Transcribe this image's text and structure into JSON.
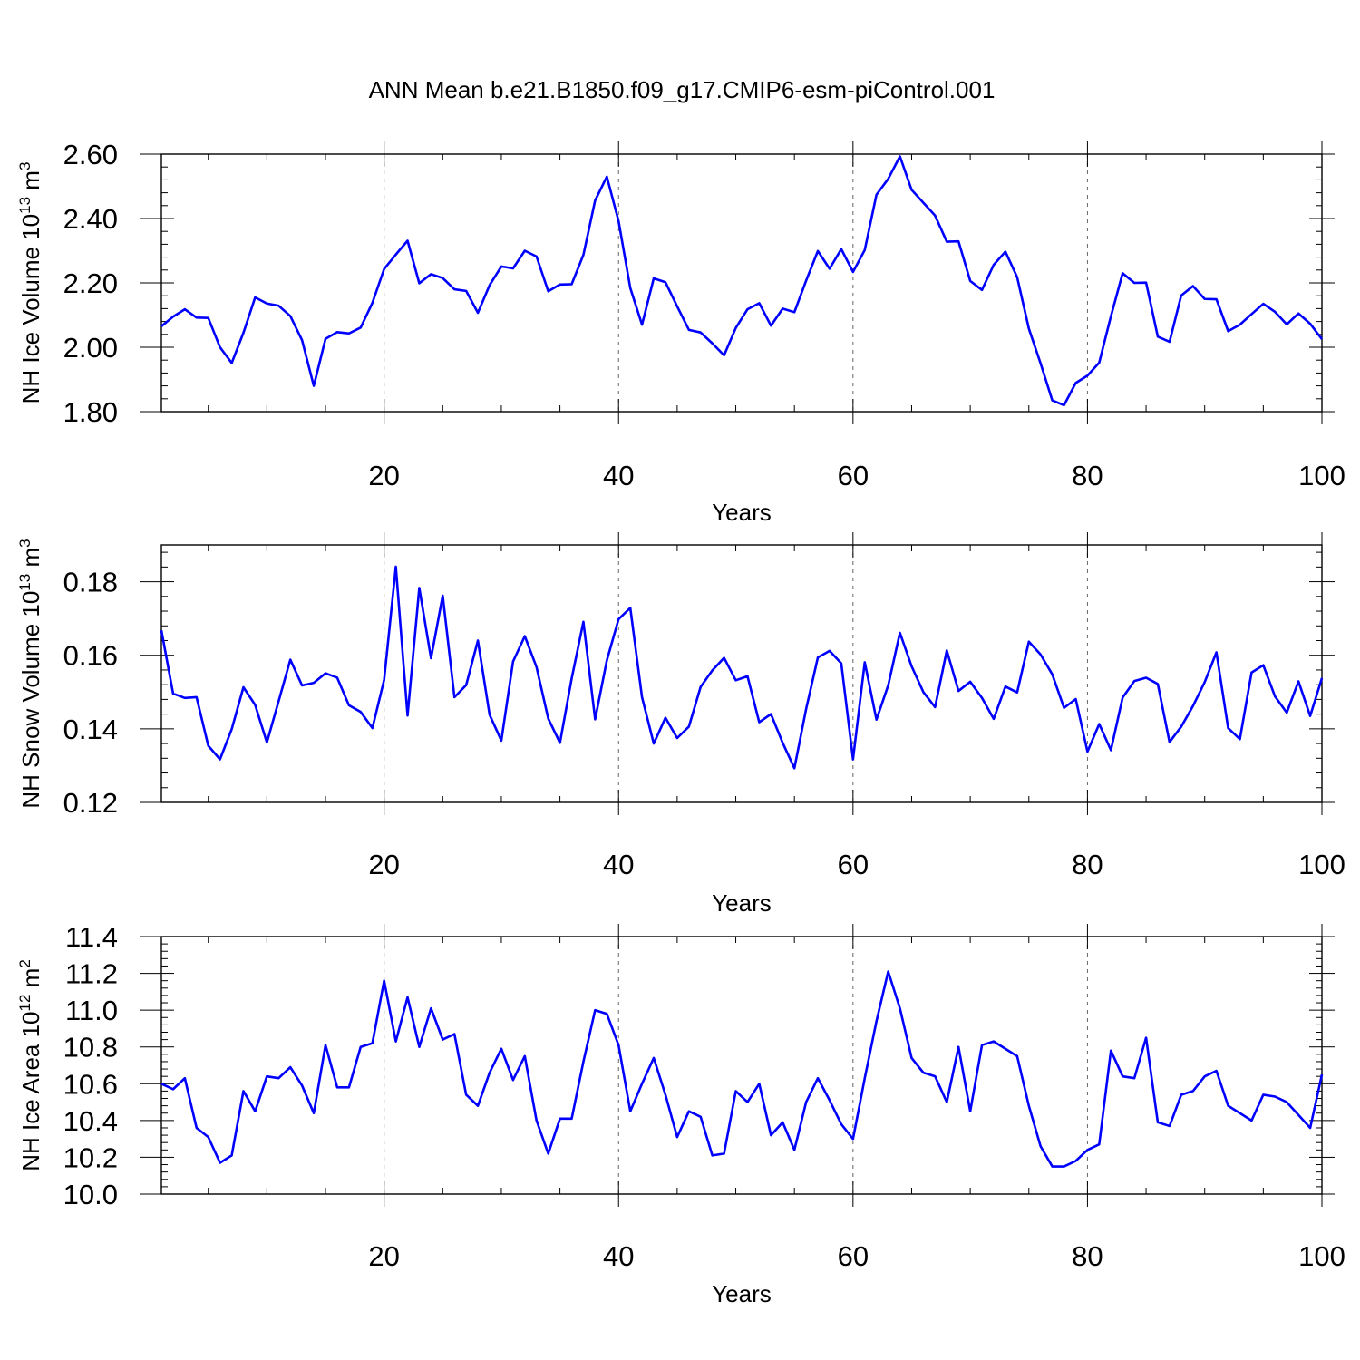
{
  "title": "ANN Mean b.e21.B1850.f09_g17.CMIP6-esm-piControl.001",
  "line_color": "#0000ff",
  "chart_data": [
    {
      "type": "line",
      "ylabel": "NH Ice Volume 10",
      "ylabel_exp": "13",
      "ylabel_unit": " m",
      "ylabel_unit_exp": "3",
      "xlabel": "Years",
      "xlim": [
        1,
        100
      ],
      "ylim": [
        1.8,
        2.6
      ],
      "yticks": [
        1.8,
        2.0,
        2.2,
        2.4,
        2.6
      ],
      "ytick_labels": [
        "1.80",
        "2.00",
        "2.20",
        "2.40",
        "2.60"
      ],
      "xticks": [
        20,
        40,
        60,
        80,
        100
      ],
      "xtick_labels": [
        "20",
        "40",
        "60",
        "80",
        "100"
      ],
      "grid_x": [
        20,
        40,
        60,
        80
      ],
      "series": [
        {
          "values": [
            2.065,
            2.095,
            2.118,
            2.092,
            2.091,
            2.0,
            1.951,
            2.045,
            2.155,
            2.136,
            2.129,
            2.097,
            2.022,
            1.88,
            2.026,
            2.047,
            2.043,
            2.061,
            2.138,
            2.243,
            2.288,
            2.331,
            2.199,
            2.227,
            2.215,
            2.18,
            2.175,
            2.107,
            2.193,
            2.251,
            2.245,
            2.3,
            2.282,
            2.174,
            2.195,
            2.196,
            2.287,
            2.456,
            2.53,
            2.392,
            2.184,
            2.07,
            2.214,
            2.202,
            2.127,
            2.054,
            2.046,
            2.012,
            1.975,
            2.06,
            2.118,
            2.137,
            2.067,
            2.12,
            2.109,
            2.207,
            2.299,
            2.244,
            2.305,
            2.234,
            2.302,
            2.474,
            2.523,
            2.593,
            2.489,
            2.449,
            2.409,
            2.328,
            2.329,
            2.206,
            2.178,
            2.256,
            2.297,
            2.218,
            2.058,
            1.95,
            1.835,
            1.82,
            1.889,
            1.912,
            1.952,
            2.096,
            2.23,
            2.2,
            2.201,
            2.033,
            2.017,
            2.161,
            2.19,
            2.15,
            2.149,
            2.05,
            2.07,
            2.103,
            2.135,
            2.11,
            2.071,
            2.105,
            2.073,
            2.025
          ]
        }
      ]
    },
    {
      "type": "line",
      "ylabel": "NH Snow Volume 10",
      "ylabel_exp": "13",
      "ylabel_unit": " m",
      "ylabel_unit_exp": "3",
      "xlabel": "Years",
      "xlim": [
        1,
        100
      ],
      "ylim": [
        0.12,
        0.19
      ],
      "yticks": [
        0.12,
        0.14,
        0.16,
        0.18
      ],
      "ytick_labels": [
        "0.12",
        "0.14",
        "0.16",
        "0.18"
      ],
      "xticks": [
        20,
        40,
        60,
        80,
        100
      ],
      "xtick_labels": [
        "20",
        "40",
        "60",
        "80",
        "100"
      ],
      "grid_x": [
        20,
        40,
        60,
        80
      ],
      "series": [
        {
          "values": [
            0.1668,
            0.1496,
            0.1484,
            0.1486,
            0.1354,
            0.1317,
            0.1399,
            0.1513,
            0.1465,
            0.1363,
            0.1475,
            0.1588,
            0.1518,
            0.1525,
            0.1551,
            0.1539,
            0.1464,
            0.1446,
            0.1402,
            0.1533,
            0.1841,
            0.1436,
            0.1783,
            0.1592,
            0.1762,
            0.1486,
            0.1519,
            0.164,
            0.1438,
            0.1368,
            0.1583,
            0.1652,
            0.1568,
            0.1428,
            0.1362,
            0.1537,
            0.1691,
            0.1426,
            0.1586,
            0.1698,
            0.1729,
            0.1486,
            0.136,
            0.143,
            0.1375,
            0.1406,
            0.1514,
            0.1559,
            0.1593,
            0.1532,
            0.1543,
            0.1418,
            0.144,
            0.1362,
            0.1293,
            0.1454,
            0.1594,
            0.1612,
            0.1578,
            0.1317,
            0.1581,
            0.1425,
            0.1518,
            0.1661,
            0.157,
            0.15,
            0.1459,
            0.1613,
            0.1503,
            0.1528,
            0.1484,
            0.1427,
            0.1515,
            0.1499,
            0.1637,
            0.1602,
            0.1548,
            0.1457,
            0.1481,
            0.1338,
            0.1413,
            0.1342,
            0.1485,
            0.153,
            0.1539,
            0.1522,
            0.1364,
            0.1406,
            0.1462,
            0.1527,
            0.1608,
            0.1402,
            0.1372,
            0.1553,
            0.1573,
            0.1488,
            0.1444,
            0.1529,
            0.1435,
            0.1538
          ]
        }
      ]
    },
    {
      "type": "line",
      "ylabel": "NH Ice Area 10",
      "ylabel_exp": "12",
      "ylabel_unit": " m",
      "ylabel_unit_exp": "2",
      "xlabel": "Years",
      "xlim": [
        1,
        100
      ],
      "ylim": [
        10.0,
        11.4
      ],
      "yticks": [
        10.0,
        10.2,
        10.4,
        10.6,
        10.8,
        11.0,
        11.2,
        11.4
      ],
      "ytick_labels": [
        "10.0",
        "10.2",
        "10.4",
        "10.6",
        "10.8",
        "11.0",
        "11.2",
        "11.4"
      ],
      "xticks": [
        20,
        40,
        60,
        80,
        100
      ],
      "xtick_labels": [
        "20",
        "40",
        "60",
        "80",
        "100"
      ],
      "grid_x": [
        20,
        40,
        60,
        80
      ],
      "series": [
        {
          "values": [
            10.6,
            10.57,
            10.63,
            10.36,
            10.31,
            10.17,
            10.21,
            10.56,
            10.45,
            10.64,
            10.63,
            10.69,
            10.59,
            10.44,
            10.81,
            10.58,
            10.58,
            10.8,
            10.82,
            11.16,
            10.83,
            11.07,
            10.8,
            11.01,
            10.84,
            10.87,
            10.54,
            10.48,
            10.66,
            10.79,
            10.62,
            10.75,
            10.4,
            10.22,
            10.41,
            10.41,
            10.72,
            11.0,
            10.98,
            10.81,
            10.45,
            10.6,
            10.74,
            10.54,
            10.31,
            10.45,
            10.42,
            10.21,
            10.22,
            10.56,
            10.5,
            10.6,
            10.32,
            10.39,
            10.24,
            10.5,
            10.63,
            10.51,
            10.38,
            10.3,
            10.63,
            10.94,
            11.21,
            11.01,
            10.74,
            10.66,
            10.64,
            10.5,
            10.8,
            10.45,
            10.81,
            10.83,
            10.79,
            10.75,
            10.48,
            10.26,
            10.15,
            10.15,
            10.18,
            10.24,
            10.27,
            10.78,
            10.64,
            10.63,
            10.85,
            10.39,
            10.37,
            10.54,
            10.56,
            10.64,
            10.67,
            10.48,
            10.44,
            10.4,
            10.54,
            10.53,
            10.5,
            10.43,
            10.36,
            10.65
          ]
        }
      ]
    }
  ]
}
